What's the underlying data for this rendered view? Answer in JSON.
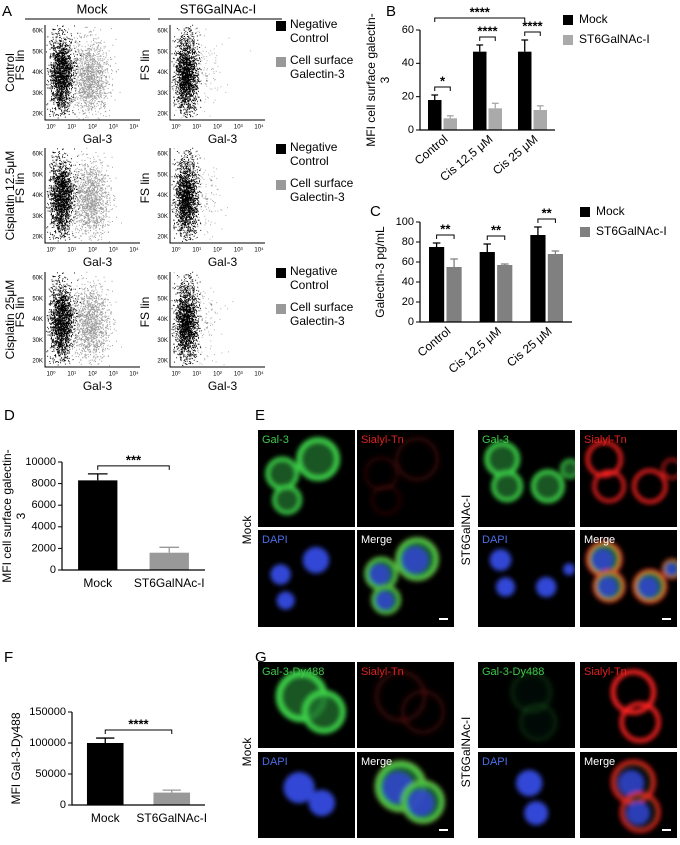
{
  "panel_labels": [
    "A",
    "B",
    "C",
    "D",
    "E",
    "F",
    "G"
  ],
  "panel_a": {
    "columns": [
      "Mock",
      "ST6GalNAc-I"
    ],
    "rows": [
      "Control",
      "Cisplatin 12.5μM",
      "Cisplatin 25μM"
    ],
    "y_label": "FS lin",
    "x_label": "Gal-3",
    "y_ticks": [
      "60K",
      "50K",
      "40K",
      "30K",
      "20K"
    ],
    "x_ticks": [
      "10⁰",
      "10¹",
      "10²",
      "10³",
      "10⁴"
    ],
    "legend": [
      "Negative Control",
      "Cell surface Galectin-3"
    ]
  },
  "chart_data": [
    {
      "type": "bar",
      "y_label": "MFI cell surface galectin-3",
      "categories": [
        "Control",
        "Cis 12,5 μM",
        "Cis 25 μM"
      ],
      "series": [
        {
          "name": "Mock",
          "color": "#000000",
          "values": [
            18,
            47,
            47
          ],
          "errors": [
            3,
            4,
            7
          ]
        },
        {
          "name": "ST6GalNAc-I",
          "color": "#aaaaaa",
          "values": [
            7,
            13,
            12
          ],
          "errors": [
            1.5,
            3,
            2.5
          ]
        }
      ],
      "ylim": [
        0,
        60
      ],
      "yticks": [
        0,
        20,
        40,
        60
      ],
      "legend": "right",
      "significance": [
        "*",
        "****",
        "****",
        "****"
      ]
    },
    {
      "type": "bar",
      "y_label": "Galectin-3 pg/mL",
      "categories": [
        "Control",
        "Cis 12,5 μM",
        "Cis 25 μM"
      ],
      "series": [
        {
          "name": "Mock",
          "color": "#000000",
          "values": [
            75,
            70,
            87
          ],
          "errors": [
            4,
            8,
            8
          ]
        },
        {
          "name": "ST6GalNAc-I",
          "color": "#808080",
          "values": [
            55,
            57,
            68
          ],
          "errors": [
            8,
            1,
            3
          ]
        }
      ],
      "ylim": [
        0,
        100
      ],
      "yticks": [
        0,
        20,
        40,
        60,
        80,
        100
      ],
      "legend": "right",
      "significance": [
        "**",
        "**",
        "**"
      ]
    },
    {
      "type": "bar",
      "y_label": "MFI cell surface galectin-3",
      "categories": [
        "Mock",
        "ST6GalNAc-I"
      ],
      "values": [
        8300,
        1600
      ],
      "errors": [
        600,
        500
      ],
      "colors": [
        "#000000",
        "#999999"
      ],
      "ylim": [
        0,
        10000
      ],
      "yticks": [
        0,
        2000,
        4000,
        6000,
        8000,
        10000
      ],
      "significance": [
        "***"
      ]
    },
    {
      "type": "bar",
      "y_label": "MFI Gal-3-Dy488",
      "categories": [
        "Mock",
        "ST6GalNAc-I"
      ],
      "values": [
        100000,
        20000
      ],
      "errors": [
        8000,
        4000
      ],
      "colors": [
        "#000000",
        "#999999"
      ],
      "ylim": [
        0,
        150000
      ],
      "yticks": [
        0,
        50000,
        100000,
        150000
      ],
      "significance": [
        "****"
      ]
    }
  ],
  "panel_e": {
    "conditions": [
      "Mock",
      "ST6GalNAc-I"
    ],
    "channels": [
      "Gal-3",
      "Sialyl-Tn",
      "DAPI",
      "Merge"
    ]
  },
  "panel_g": {
    "conditions": [
      "Mock",
      "ST6GalNAc-I"
    ],
    "channels": [
      "Gal-3-Dy488",
      "Sialyl-Tn",
      "DAPI",
      "Merge"
    ]
  }
}
